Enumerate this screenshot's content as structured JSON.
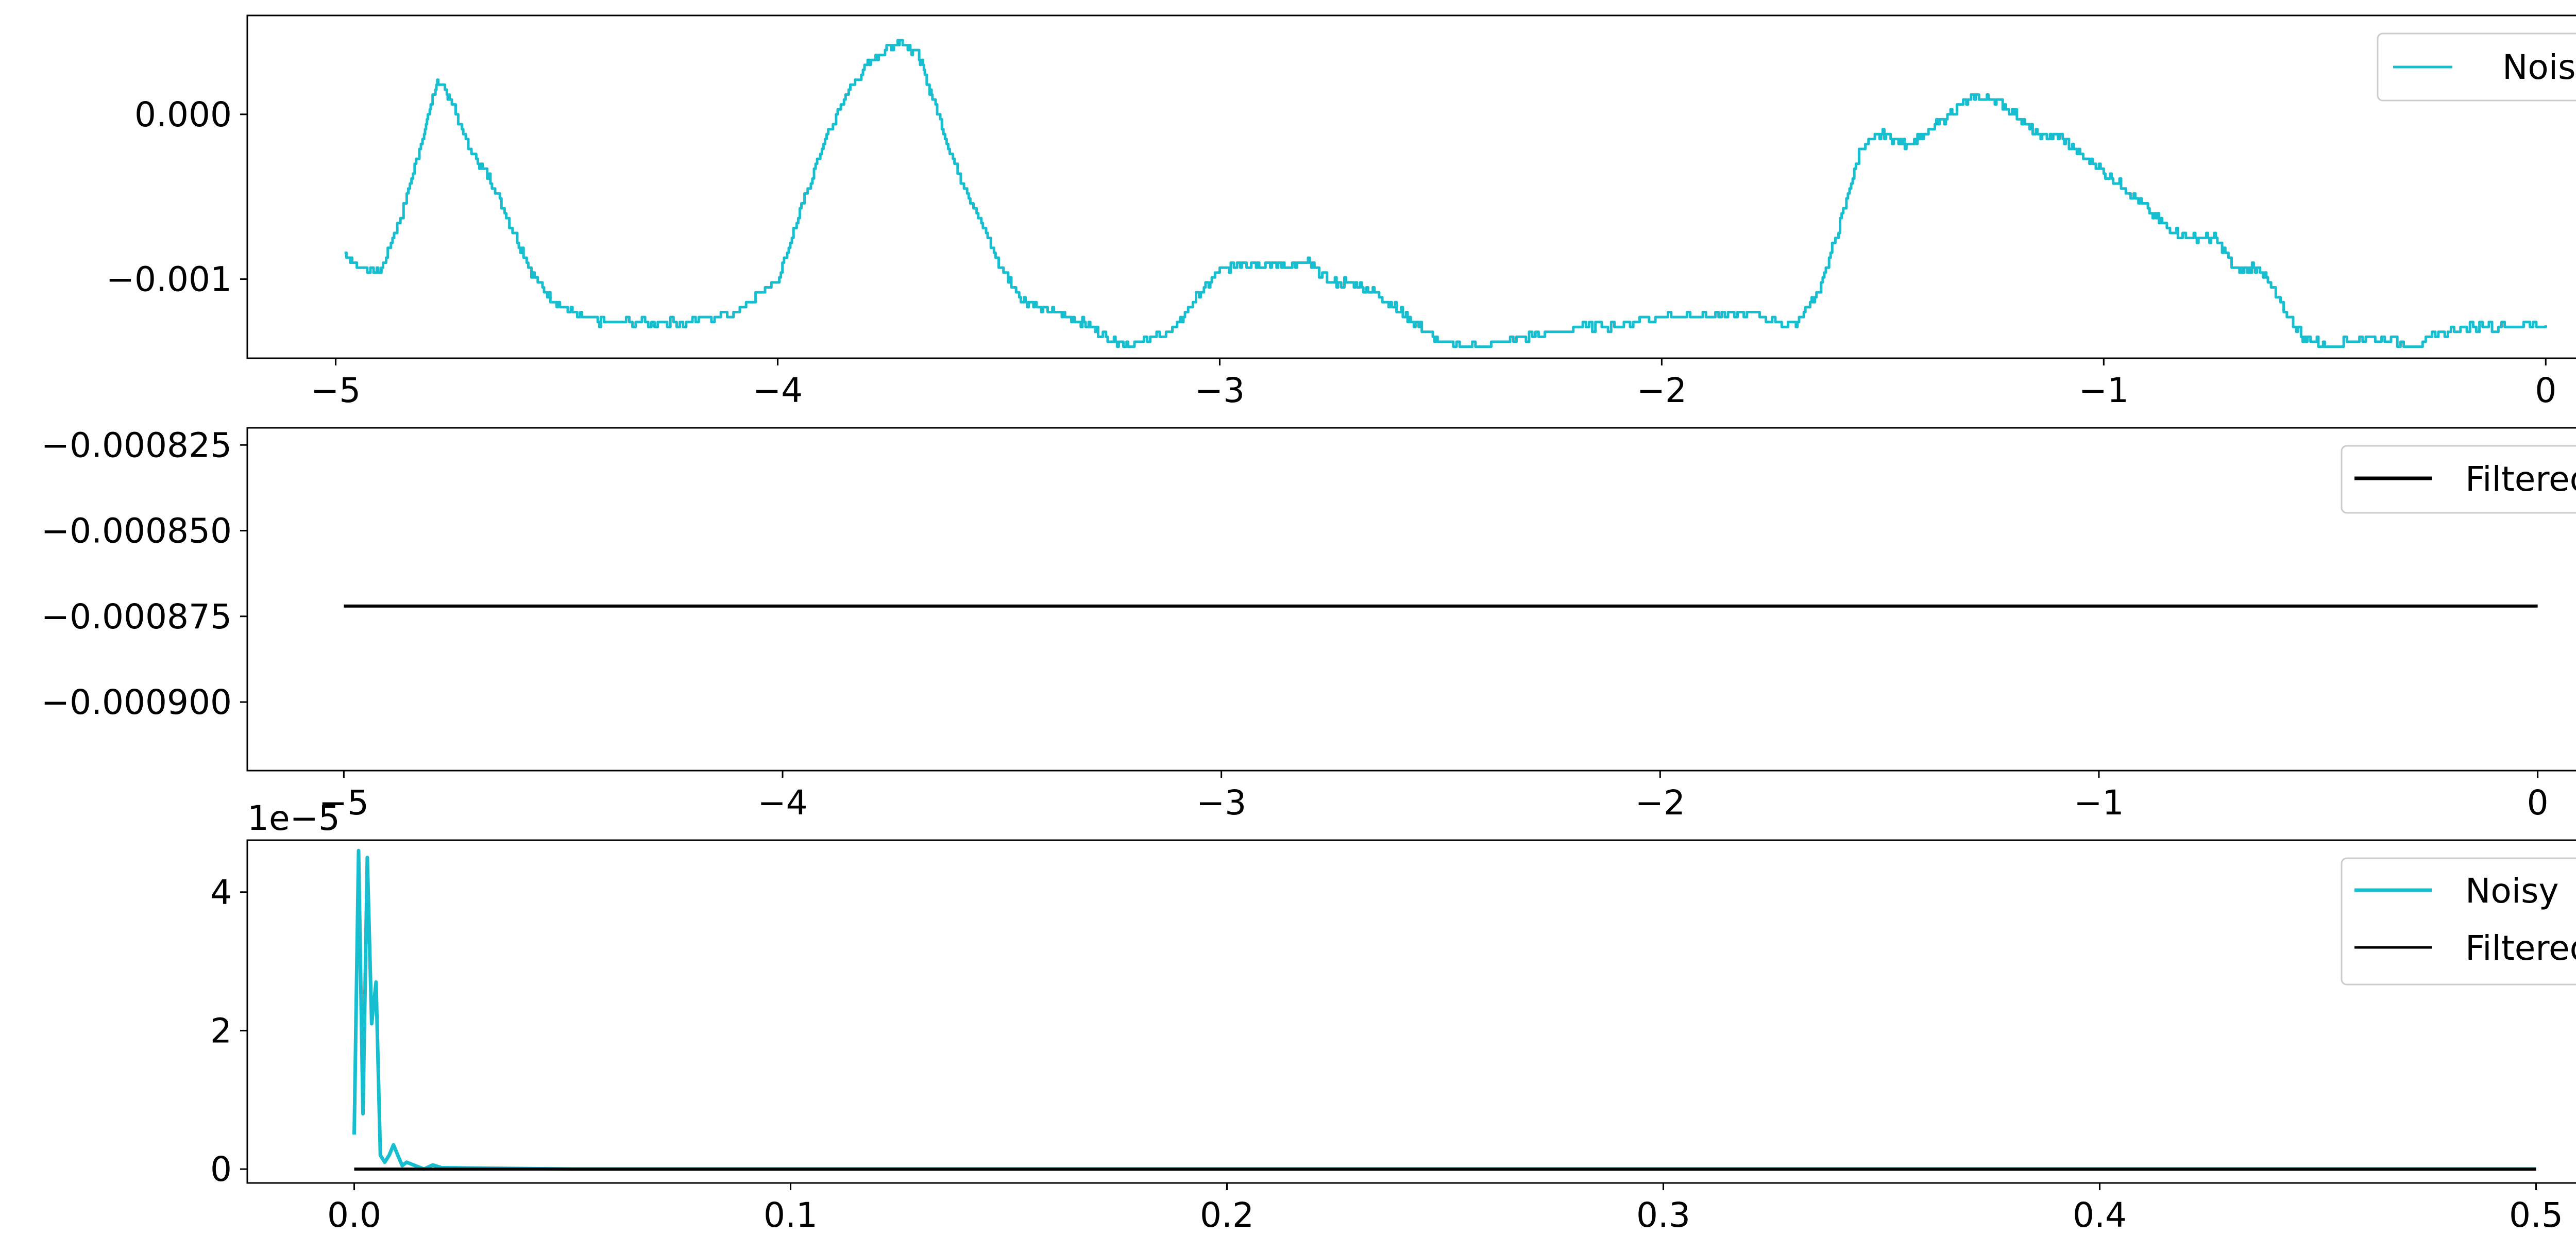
{
  "colors": {
    "noisy": "#17BECF",
    "filtered": "#000000",
    "axes": "#000000",
    "background": "#FFFFFF"
  },
  "chart_data": [
    {
      "type": "line",
      "title": "",
      "xlabel": "",
      "ylabel": "",
      "xlim": [
        -5.2,
        0.22
      ],
      "ylim": [
        -0.00148,
        0.0006
      ],
      "xticks": [
        -5,
        -4,
        -3,
        -2,
        -1,
        0
      ],
      "xtick_labels": [
        "−5",
        "−4",
        "−3",
        "−2",
        "−1",
        "0"
      ],
      "yticks": [
        0.0,
        -0.001
      ],
      "ytick_labels": [
        "0.000",
        "−0.001"
      ],
      "legend": {
        "placement": "upper right",
        "entries": [
          "Noisy"
        ]
      },
      "grid": false,
      "series": [
        {
          "name": "Noisy",
          "color": "#17BECF",
          "style": "quantized-noisy",
          "x": [
            -4.98,
            -4.95,
            -4.9,
            -4.85,
            -4.8,
            -4.77,
            -4.74,
            -4.7,
            -4.65,
            -4.6,
            -4.55,
            -4.5,
            -4.45,
            -4.4,
            -4.3,
            -4.2,
            -4.1,
            -4.0,
            -3.95,
            -3.9,
            -3.85,
            -3.8,
            -3.75,
            -3.72,
            -3.68,
            -3.65,
            -3.6,
            -3.55,
            -3.5,
            -3.45,
            -3.4,
            -3.35,
            -3.3,
            -3.25,
            -3.2,
            -3.1,
            -3.05,
            -3.0,
            -2.95,
            -2.9,
            -2.85,
            -2.8,
            -2.75,
            -2.7,
            -2.65,
            -2.6,
            -2.55,
            -2.5,
            -2.4,
            -2.3,
            -2.2,
            -2.1,
            -2.0,
            -1.9,
            -1.8,
            -1.7,
            -1.65,
            -1.6,
            -1.55,
            -1.5,
            -1.45,
            -1.4,
            -1.35,
            -1.3,
            -1.25,
            -1.2,
            -1.15,
            -1.1,
            -1.05,
            -1.0,
            -0.95,
            -0.9,
            -0.85,
            -0.8,
            -0.75,
            -0.7,
            -0.65,
            -0.6,
            -0.55,
            -0.5,
            -0.4,
            -0.3,
            -0.2,
            -0.1,
            0.0
          ],
          "y": [
            -0.00085,
            -0.00092,
            -0.00095,
            -0.0006,
            -0.0001,
            0.0002,
            0.0001,
            -0.0002,
            -0.0004,
            -0.0007,
            -0.001,
            -0.00115,
            -0.00123,
            -0.00126,
            -0.00126,
            -0.00126,
            -0.0012,
            -0.001,
            -0.0006,
            -0.0002,
            0.0001,
            0.0003,
            0.0004,
            0.00045,
            0.00035,
            0.0001,
            -0.0003,
            -0.0006,
            -0.0009,
            -0.00112,
            -0.00118,
            -0.00122,
            -0.00128,
            -0.00136,
            -0.0014,
            -0.0013,
            -0.0011,
            -0.00095,
            -0.0009,
            -0.0009,
            -0.00092,
            -0.0009,
            -0.00102,
            -0.00102,
            -0.00108,
            -0.00118,
            -0.00128,
            -0.0014,
            -0.0014,
            -0.00135,
            -0.0013,
            -0.00128,
            -0.00122,
            -0.00122,
            -0.00122,
            -0.00128,
            -0.0011,
            -0.0007,
            -0.0002,
            -0.00012,
            -0.00018,
            -0.00012,
            0.0,
            0.0001,
            0.0001,
            0.0,
            -0.00013,
            -0.00013,
            -0.00025,
            -0.00035,
            -0.00045,
            -0.00058,
            -0.0007,
            -0.00075,
            -0.00075,
            -0.00095,
            -0.00092,
            -0.00115,
            -0.00135,
            -0.0014,
            -0.00135,
            -0.0014,
            -0.0013,
            -0.00128,
            -0.00128
          ]
        }
      ]
    },
    {
      "type": "line",
      "title": "",
      "xlabel": "",
      "ylabel": "",
      "xlim": [
        -5.22,
        0.24
      ],
      "ylim": [
        -0.00092,
        -0.00082
      ],
      "xticks": [
        -5,
        -4,
        -3,
        -2,
        -1,
        0
      ],
      "xtick_labels": [
        "−5",
        "−4",
        "−3",
        "−2",
        "−1",
        "0"
      ],
      "yticks": [
        -0.000825,
        -0.00085,
        -0.000875,
        -0.0009
      ],
      "ytick_labels": [
        "−0.000825",
        "−0.000850",
        "−0.000875",
        "−0.000900"
      ],
      "legend": {
        "placement": "upper right",
        "entries": [
          "Filtered"
        ]
      },
      "grid": false,
      "series": [
        {
          "name": "Filtered",
          "color": "#000000",
          "x": [
            -5.0,
            0.0
          ],
          "y": [
            -0.000872,
            -0.000872
          ]
        }
      ]
    },
    {
      "type": "line",
      "title": "",
      "xlabel": "",
      "ylabel": "",
      "offset_text": "1e−5",
      "xlim": [
        -0.0245,
        0.5245
      ],
      "ylim": [
        -0.2,
        4.75
      ],
      "xticks": [
        0.0,
        0.1,
        0.2,
        0.3,
        0.4,
        0.5
      ],
      "xtick_labels": [
        "0.0",
        "0.1",
        "0.2",
        "0.3",
        "0.4",
        "0.5"
      ],
      "yticks": [
        0,
        2,
        4
      ],
      "ytick_labels": [
        "0",
        "2",
        "4"
      ],
      "legend": {
        "placement": "upper right",
        "entries": [
          "Noisy",
          "Filtered"
        ]
      },
      "grid": false,
      "series": [
        {
          "name": "Noisy",
          "color": "#17BECF",
          "x": [
            0.0,
            0.001,
            0.002,
            0.003,
            0.004,
            0.005,
            0.006,
            0.007,
            0.008,
            0.009,
            0.01,
            0.011,
            0.012,
            0.014,
            0.016,
            0.018,
            0.02,
            0.05,
            0.1,
            0.2,
            0.3,
            0.4,
            0.5
          ],
          "y": [
            0.5,
            4.6,
            0.8,
            4.5,
            2.1,
            2.7,
            0.2,
            0.1,
            0.2,
            0.35,
            0.2,
            0.05,
            0.1,
            0.05,
            0.0,
            0.06,
            0.02,
            0.0,
            0.0,
            0.0,
            0.0,
            0.0,
            0.0
          ]
        },
        {
          "name": "Filtered",
          "color": "#000000",
          "x": [
            0.0,
            0.5
          ],
          "y": [
            0.0,
            0.0
          ]
        }
      ]
    }
  ]
}
